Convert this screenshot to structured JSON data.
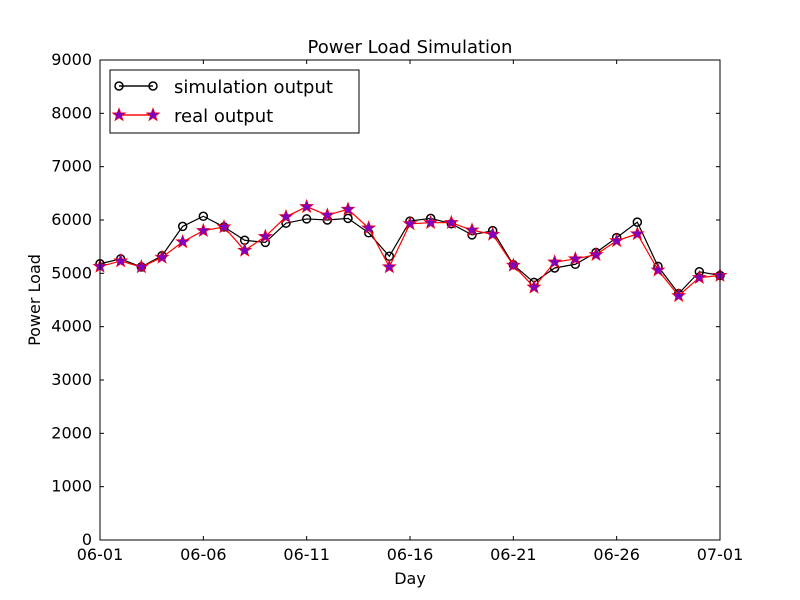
{
  "chart_data": {
    "type": "line",
    "title": "Power Load Simulation",
    "xlabel": "Day",
    "ylabel": "Power Load",
    "ylim": [
      0,
      9000
    ],
    "xlim": [
      "06-01",
      "07-01"
    ],
    "yticks": [
      0,
      1000,
      2000,
      3000,
      4000,
      5000,
      6000,
      7000,
      8000,
      9000
    ],
    "xtick_labels": [
      "06-01",
      "06-06",
      "06-11",
      "06-16",
      "06-21",
      "06-26",
      "07-01"
    ],
    "grid": false,
    "legend_position": "top-left",
    "x": [
      "06-01",
      "06-02",
      "06-03",
      "06-04",
      "06-05",
      "06-06",
      "06-07",
      "06-08",
      "06-09",
      "06-10",
      "06-11",
      "06-12",
      "06-13",
      "06-14",
      "06-15",
      "06-16",
      "06-17",
      "06-18",
      "06-19",
      "06-20",
      "06-21",
      "06-22",
      "06-23",
      "06-24",
      "06-25",
      "06-26",
      "06-27",
      "06-28",
      "06-29",
      "06-30",
      "07-01"
    ],
    "series": [
      {
        "name": "simulation output",
        "color": "#000000",
        "marker": "circle",
        "values": [
          5180,
          5270,
          5120,
          5330,
          5880,
          6070,
          5870,
          5620,
          5580,
          5940,
          6020,
          6000,
          6030,
          5760,
          5320,
          5980,
          6030,
          5930,
          5720,
          5800,
          5160,
          4830,
          5100,
          5170,
          5390,
          5670,
          5960,
          5130,
          4620,
          5030,
          4960
        ]
      },
      {
        "name": "real output",
        "color": "#ff0000",
        "marker": "star",
        "marker_color": "#8000c0",
        "values": [
          5130,
          5230,
          5120,
          5300,
          5590,
          5800,
          5870,
          5430,
          5690,
          6060,
          6250,
          6090,
          6200,
          5850,
          5120,
          5930,
          5950,
          5950,
          5810,
          5730,
          5150,
          4740,
          5210,
          5270,
          5350,
          5610,
          5740,
          5060,
          4580,
          4920,
          4960
        ]
      }
    ]
  }
}
